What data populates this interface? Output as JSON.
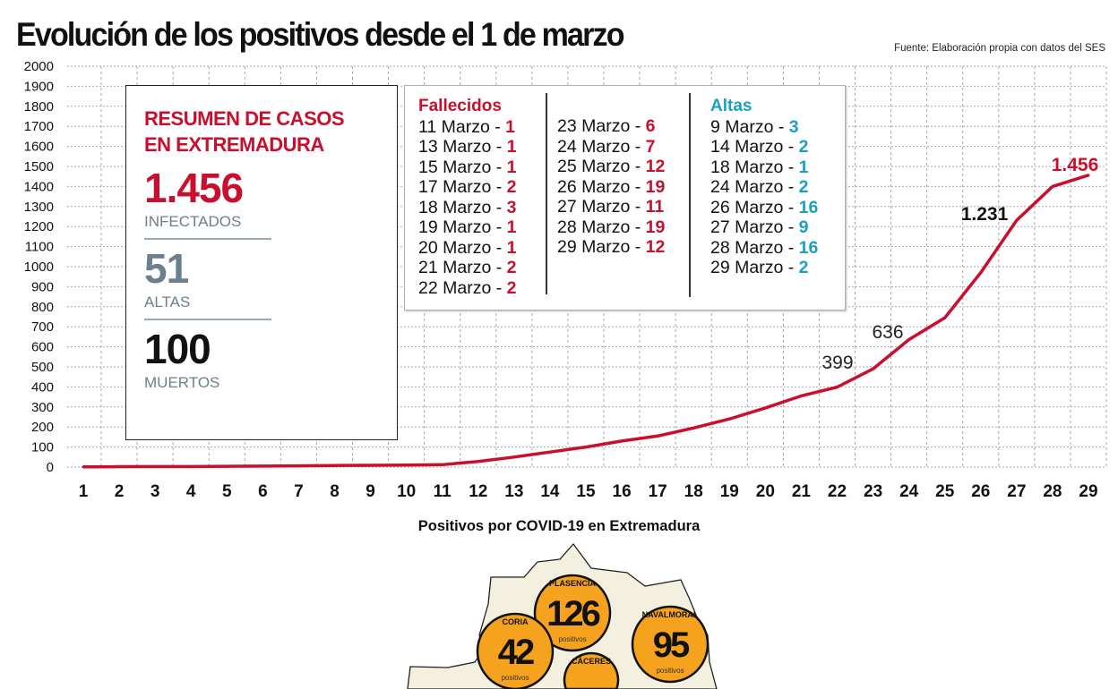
{
  "title": "Evolución de los positivos desde el 1 de marzo",
  "source": "Fuente: Elaboración propia con datos del SES",
  "summary": {
    "heading1": "RESUMEN DE CASOS",
    "heading2": "EN EXTREMADURA",
    "infected": "1.456",
    "infected_label": "INFECTADOS",
    "discharged": "51",
    "discharged_label": "ALTAS",
    "deaths": "100",
    "deaths_label": "MUERTOS"
  },
  "deaths_list": {
    "title": "Fallecidos",
    "col1": [
      [
        "11 Marzo - ",
        "1"
      ],
      [
        "13 Marzo - ",
        "1"
      ],
      [
        "15 Marzo - ",
        "1"
      ],
      [
        "17 Marzo - ",
        "2"
      ],
      [
        "18 Marzo - ",
        "3"
      ],
      [
        "19 Marzo - ",
        "1"
      ],
      [
        "20 Marzo - ",
        "1"
      ],
      [
        "21 Marzo - ",
        "2"
      ],
      [
        "22 Marzo - ",
        "2"
      ]
    ],
    "col2": [
      [
        "23 Marzo - ",
        "6"
      ],
      [
        "24 Marzo - ",
        "7"
      ],
      [
        "25 Marzo - ",
        "12"
      ],
      [
        "26 Marzo - ",
        "19"
      ],
      [
        "27 Marzo - ",
        "11"
      ],
      [
        "28 Marzo - ",
        "19"
      ],
      [
        "29 Marzo - ",
        "12"
      ]
    ]
  },
  "discharges_list": {
    "title": "Altas",
    "items": [
      [
        "9 Marzo - ",
        "3"
      ],
      [
        "14 Marzo - ",
        "2"
      ],
      [
        "18 Marzo - ",
        "1"
      ],
      [
        "24 Marzo - ",
        "2"
      ],
      [
        "26 Marzo - ",
        "16"
      ],
      [
        "27 Marzo - ",
        "9"
      ],
      [
        "28 Marzo - ",
        "16"
      ],
      [
        "29 Marzo - ",
        "2"
      ]
    ]
  },
  "colors": {
    "line": "#c8102e",
    "blue": "#1a9fc6",
    "circle": "#f5a21e",
    "map": "#f3f0e0"
  },
  "chart_data": {
    "type": "line",
    "title": "Evolución de los positivos desde el 1 de marzo",
    "x": [
      1,
      2,
      3,
      4,
      5,
      6,
      7,
      8,
      9,
      10,
      11,
      12,
      13,
      14,
      15,
      16,
      17,
      18,
      19,
      20,
      21,
      22,
      23,
      24,
      25,
      26,
      27,
      28,
      29
    ],
    "values": [
      1,
      2,
      3,
      3,
      4,
      5,
      6,
      8,
      9,
      10,
      12,
      28,
      50,
      75,
      100,
      130,
      155,
      195,
      240,
      295,
      355,
      399,
      490,
      636,
      745,
      970,
      1231,
      1400,
      1456
    ],
    "annotations": [
      {
        "x": 22,
        "label": "399"
      },
      {
        "x": 24,
        "label": "636"
      },
      {
        "x": 27,
        "label": "1.231"
      },
      {
        "x": 29,
        "label": "1.456"
      }
    ],
    "ylim": [
      0,
      2000
    ],
    "yticks": [
      0,
      100,
      200,
      300,
      400,
      500,
      600,
      700,
      800,
      900,
      1000,
      1100,
      1200,
      1300,
      1400,
      1500,
      1600,
      1700,
      1800,
      1900,
      2000
    ],
    "xlabel": "",
    "ylabel": "",
    "grid": true
  },
  "map": {
    "title": "Positivos por COVID-19 en Extremadura",
    "unit": "positivos",
    "areas": [
      {
        "name": "PLASENCIA",
        "value": "126"
      },
      {
        "name": "NAVALMORAL",
        "value": "95"
      },
      {
        "name": "CORIA",
        "value": "42"
      },
      {
        "name": "CÁCERES",
        "value": ""
      }
    ]
  }
}
